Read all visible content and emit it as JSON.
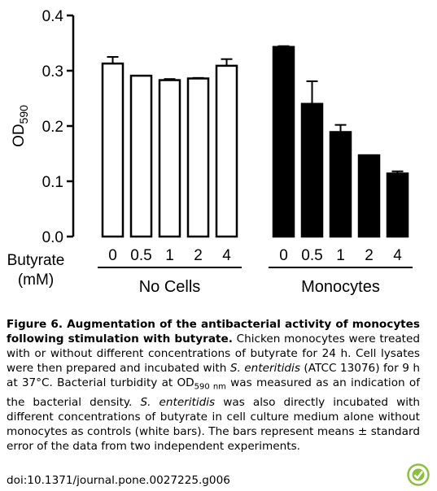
{
  "chart_data": {
    "type": "bar",
    "ylabel": "OD",
    "ylabel_subscript": "590",
    "ylim": [
      0,
      0.4
    ],
    "yticks": [
      "0.0",
      "0.1",
      "0.2",
      "0.3",
      "0.4"
    ],
    "ytick_values": [
      0,
      0.1,
      0.2,
      0.3,
      0.4
    ],
    "xlabel_lines": [
      "Butyrate",
      "(mM)"
    ],
    "categories": [
      "0",
      "0.5",
      "1",
      "2",
      "4"
    ],
    "groups": [
      {
        "name": "No Cells",
        "fill": "#ffffff",
        "values": [
          0.313,
          0.291,
          0.283,
          0.286,
          0.309
        ],
        "errors": [
          0.012,
          0.0,
          0.002,
          0.001,
          0.012
        ]
      },
      {
        "name": "Monocytes",
        "fill": "#000000",
        "values": [
          0.343,
          0.24,
          0.189,
          0.147,
          0.114
        ],
        "errors": [
          0.0015,
          0.041,
          0.013,
          0.0,
          0.004
        ]
      }
    ],
    "grid": false
  },
  "caption": {
    "title": "Figure 6. Augmentation of the antibacterial activity of monocytes following stimulation with butyrate.",
    "body_1": " Chicken monocytes were treated with or without different concentrations of butyrate for 24 h. Cell lysates were then prepared and incubated with ",
    "italic_1": "S. enteritidis",
    "body_2": " (ATCC 13076) for 9 h at 37°C. Bacterial turbidity at OD",
    "sub_1": "590 nm",
    "body_3": " was measured as an indication of the bacterial density. ",
    "italic_2": "S. enteritidis",
    "body_4": " was also directly incubated with different concentrations of butyrate in cell culture medium alone without monocytes as controls (white bars). The bars represent means ± standard error of the data from two independent experiments."
  },
  "doi": "doi:10.1371/journal.pone.0027225.g006",
  "logo_icon": "plos-logo-icon"
}
